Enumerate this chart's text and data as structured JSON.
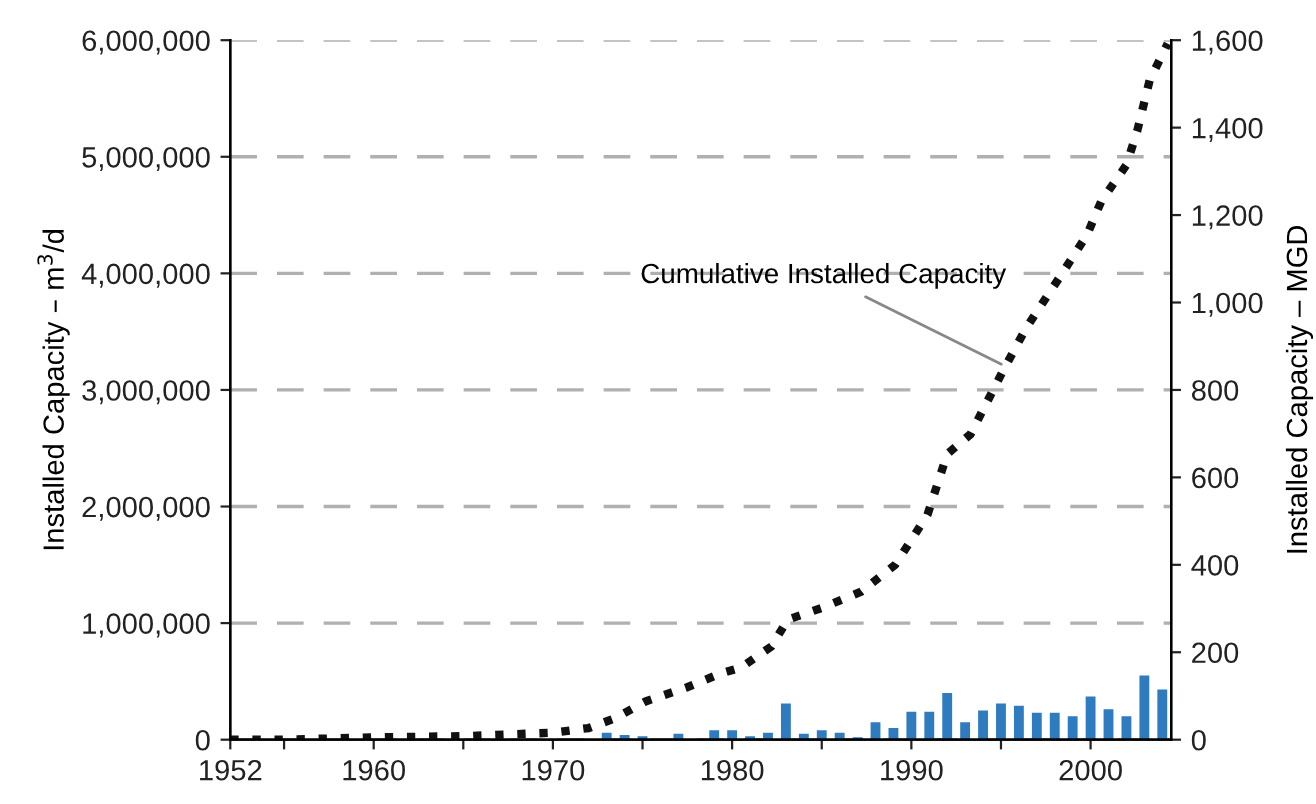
{
  "chart_data": {
    "type": "bar",
    "ylabel": "Installed Capacity – m$^{3}$/d",
    "y2label": "Installed Capacity – MGD",
    "xlim": [
      1952,
      2004.5
    ],
    "xticks": [
      1952,
      {
        "value": 1955,
        "label": null
      },
      1960,
      {
        "value": 1965,
        "label": null
      },
      1970,
      {
        "value": 1975,
        "label": null
      },
      1980,
      {
        "value": 1985,
        "label": null
      },
      1990,
      {
        "value": 1995,
        "label": null
      },
      2000
    ],
    "ylim": [
      0,
      6000000
    ],
    "yticks": [
      {
        "value": 0,
        "label": "0"
      },
      {
        "value": 1000000,
        "label": "1,000,000"
      },
      {
        "value": 2000000,
        "label": "2,000,000"
      },
      {
        "value": 3000000,
        "label": "3,000,000"
      },
      {
        "value": 4000000,
        "label": "4,000,000"
      },
      {
        "value": 5000000,
        "label": "5,000,000"
      },
      {
        "value": 6000000,
        "label": "6,000,000"
      }
    ],
    "y2lim": [
      0,
      1600
    ],
    "y2ticks": [
      0,
      200,
      400,
      600,
      800,
      {
        "value": 1000,
        "label": "1,000"
      },
      {
        "value": 1200,
        "label": "1,200"
      },
      {
        "value": 1400,
        "label": "1,400"
      },
      {
        "value": 1600,
        "label": "1,600"
      }
    ],
    "grid": "y",
    "legend": false,
    "annotations": [
      {
        "text": "Cumulative Installed Capacity",
        "x": 1995.3,
        "y": 3200000
      }
    ],
    "series": [
      {
        "color": "#2e7bbf",
        "x": [
          1973,
          1974,
          1975,
          1977,
          1979,
          1980,
          1981,
          1982,
          1983,
          1984,
          1985,
          1986,
          1987,
          1988,
          1989,
          1990,
          1991,
          1992,
          1993,
          1994,
          1995,
          1996,
          1997,
          1998,
          1999,
          2000,
          2001,
          2002,
          2003,
          2004
        ],
        "values": [
          60000,
          40000,
          30000,
          50000,
          80000,
          80000,
          30000,
          60000,
          310000,
          50000,
          80000,
          60000,
          20000,
          150000,
          100000,
          240000,
          240000,
          400000,
          150000,
          250000,
          310000,
          290000,
          230000,
          230000,
          200000,
          370000,
          260000,
          200000,
          550000,
          430000
        ]
      },
      {
        "type": "line",
        "color": "#111111",
        "line_style": "dotted",
        "marker": "none",
        "x": [
          1952,
          1955,
          1960,
          1965,
          1970,
          1972,
          1973.4,
          1975.2,
          1977.5,
          1979.4,
          1980.5,
          1982.2,
          1983.1,
          1985,
          1987.2,
          1989.1,
          1990.9,
          1992,
          1993.3,
          1995.1,
          1996.4,
          1998.5,
          1999.8,
          2000.6,
          2002,
          2002.6,
          2003.3,
          2004.3
        ],
        "values": [
          0,
          0,
          20000,
          30000,
          60000,
          100000,
          180000,
          330000,
          450000,
          570000,
          620000,
          800000,
          1030000,
          1130000,
          1270000,
          1500000,
          1930000,
          2450000,
          2620000,
          3160000,
          3530000,
          4020000,
          4330000,
          4620000,
          4930000,
          5220000,
          5660000,
          5970000
        ]
      }
    ]
  }
}
